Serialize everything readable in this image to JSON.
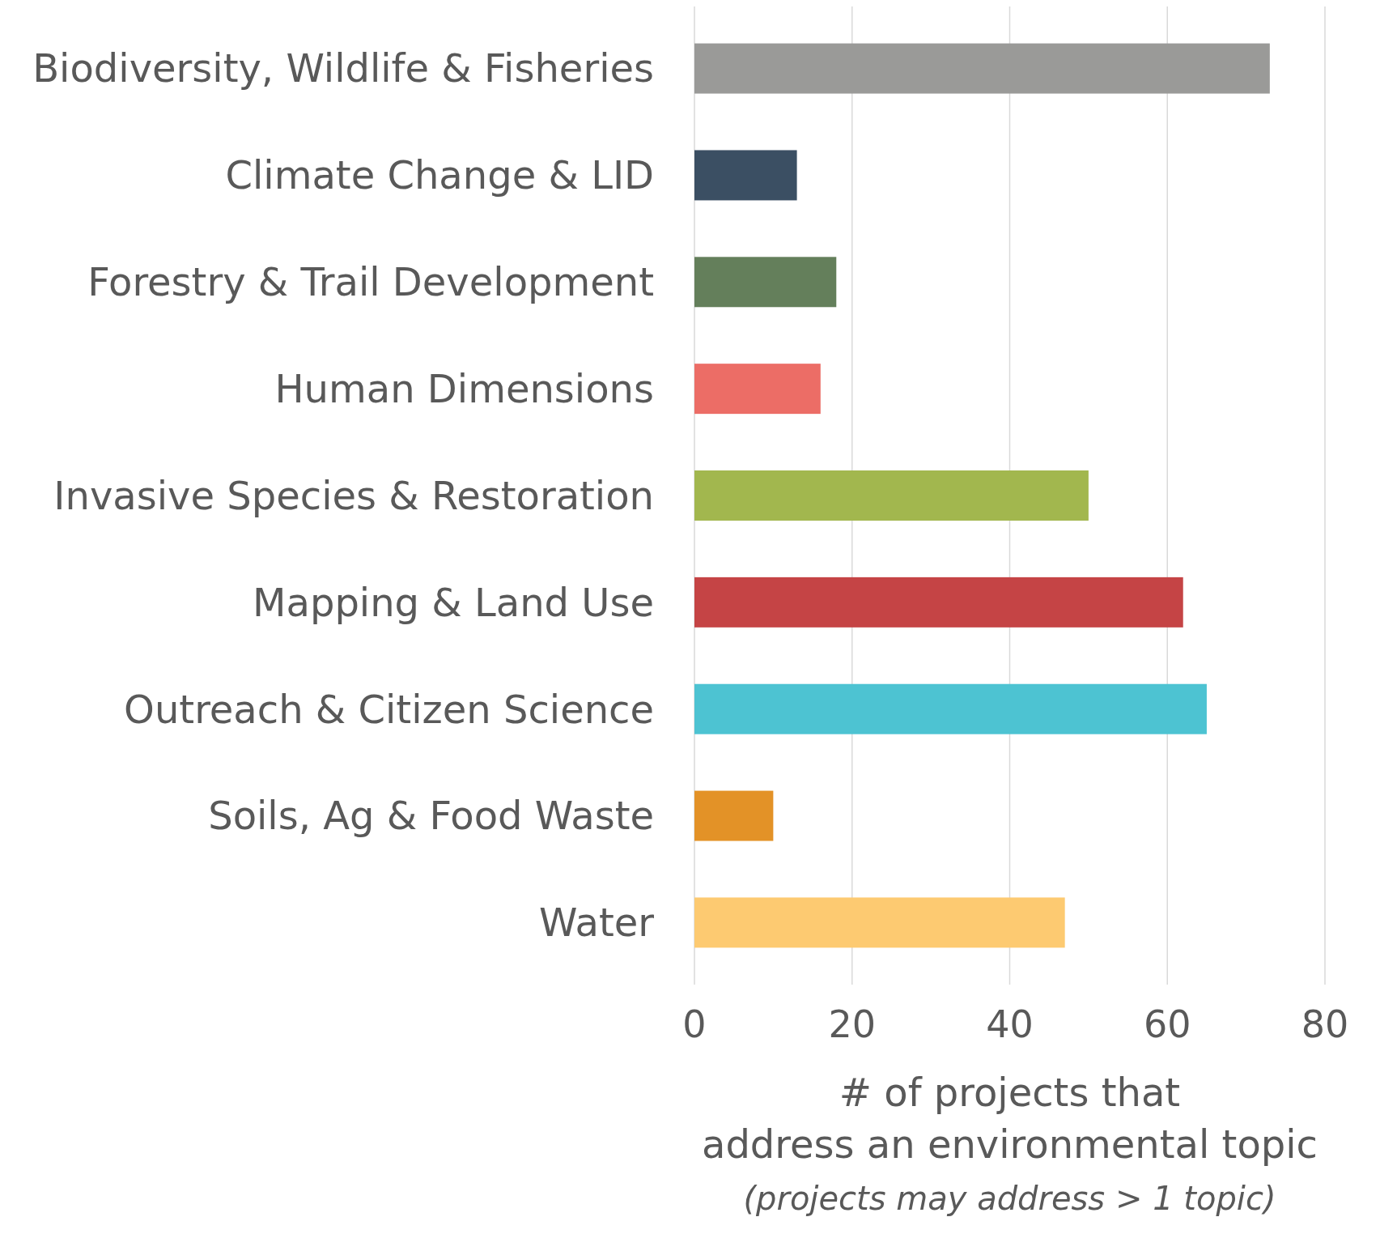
{
  "chart_data": {
    "type": "bar",
    "orientation": "horizontal",
    "categories": [
      "Biodiversity, Wildlife & Fisheries",
      "Climate Change & LID",
      "Forestry & Trail Development",
      "Human Dimensions",
      "Invasive Species & Restoration",
      "Mapping & Land Use",
      "Outreach & Citizen Science",
      "Soils, Ag & Food Waste",
      "Water"
    ],
    "values": [
      73,
      13,
      18,
      16,
      50,
      62,
      65,
      10,
      47
    ],
    "colors": [
      "#9a9a98",
      "#3b4f63",
      "#647f5b",
      "#ec6d66",
      "#a2b74e",
      "#c54445",
      "#4dc3d2",
      "#e39227",
      "#fdca71"
    ],
    "xlim": [
      0,
      80
    ],
    "xticks": [
      0,
      20,
      40,
      60,
      80
    ],
    "grid": "x",
    "xlabel": "# of projects that\naddress an environmental topic",
    "annotations": [
      "(projects may address > 1 topic)"
    ]
  }
}
